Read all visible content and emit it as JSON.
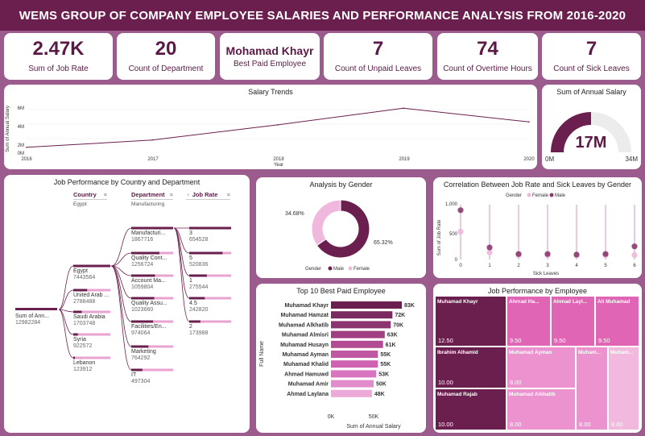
{
  "header": {
    "title": "WEMS GROUP OF COMPANY EMPLOYEE SALARIES AND PERFORMANCE ANALYSIS FROM 2016-2020"
  },
  "kpis": [
    {
      "value": "2.47K",
      "label": "Sum of Job Rate"
    },
    {
      "value": "20",
      "label": "Count of Department"
    },
    {
      "value": "Mohamad Khayr",
      "label": "Best Paid Employee"
    },
    {
      "value": "7",
      "label": "Count of Unpaid Leaves"
    },
    {
      "value": "74",
      "label": "Count of Overtime Hours"
    },
    {
      "value": "7",
      "label": "Count of Sick Leaves"
    }
  ],
  "salary_trends": {
    "title": "Salary Trends",
    "ylabel": "Sum of Annual Salary",
    "xlabel": "Year",
    "yticks": [
      "6M",
      "4M",
      "2M",
      "0M"
    ],
    "xticks": [
      "2016",
      "2017",
      "2018",
      "2019",
      "2020"
    ]
  },
  "gauge": {
    "title": "Sum of Annual Salary",
    "value": "17M",
    "min": "0M",
    "max": "34M",
    "fraction": 0.5
  },
  "decomp_tree": {
    "title": "Job Performance by Country and Department",
    "headers": [
      "Country",
      "Department",
      "Job Rate"
    ],
    "subheaders": [
      "Egypt",
      "Manufacturing",
      ""
    ],
    "root": {
      "name": "Sum of Ann...",
      "value": "12982284"
    },
    "countries": [
      {
        "name": "Egypt",
        "value": "7443564"
      },
      {
        "name": "United Arab ...",
        "value": "2788488"
      },
      {
        "name": "Saudi Arabia",
        "value": "1703748"
      },
      {
        "name": "Syria",
        "value": "922572"
      },
      {
        "name": "Lebanon",
        "value": "123912"
      }
    ],
    "departments": [
      {
        "name": "Manufacturi...",
        "value": "1867716"
      },
      {
        "name": "Quality Cont...",
        "value": "1256724"
      },
      {
        "name": "Account Ma...",
        "value": "1059804"
      },
      {
        "name": "Quality Assu...",
        "value": "1023660"
      },
      {
        "name": "Facilities/En...",
        "value": "974064"
      },
      {
        "name": "Marketing",
        "value": "764292"
      },
      {
        "name": "IT",
        "value": "497304"
      }
    ],
    "rates": [
      {
        "name": "3",
        "value": "654528"
      },
      {
        "name": "5",
        "value": "520836"
      },
      {
        "name": "1",
        "value": "275544"
      },
      {
        "name": "4.5",
        "value": "242820"
      },
      {
        "name": "2",
        "value": "173988"
      }
    ]
  },
  "gender": {
    "title": "Analysis by Gender",
    "male_pct": "65.32%",
    "female_pct": "34.68%",
    "legend_title": "Gender",
    "legend": [
      "Male",
      "Female"
    ],
    "colors": {
      "male": "#6b1f4e",
      "female": "#f0b8dc"
    }
  },
  "correlation": {
    "title": "Correlation Between Job Rate and Sick Leaves by Gender",
    "legend_title": "Gender",
    "legend": [
      "Female",
      "Male"
    ],
    "ylabel": "Sum of Job Rate",
    "xlabel": "Sick Leaves",
    "yticks": [
      "1,000",
      "500",
      "0"
    ],
    "xticks": [
      "0",
      "1",
      "2",
      "3",
      "4",
      "5",
      "6"
    ]
  },
  "top10": {
    "title": "Top 10 Best Paid Employee",
    "ylabel": "Full Name",
    "xlabel": "Sum of Annual Salary",
    "xticks": [
      "0K",
      "50K"
    ]
  },
  "treemap": {
    "title": "Job Performance by Employee",
    "cells": [
      {
        "name": "Muhamad Khayr",
        "value": "12.50",
        "color": "#6b1f4e"
      },
      {
        "name": "Ibrahim Alhamid",
        "value": "10.00",
        "color": "#6b1f4e"
      },
      {
        "name": "Muhamad Rajab",
        "value": "10.00",
        "color": "#6b1f4e"
      },
      {
        "name": "Ahmad Ha...",
        "value": "9.50",
        "color": "#e066b5"
      },
      {
        "name": "Ahmad Layl...",
        "value": "9.50",
        "color": "#e066b5"
      },
      {
        "name": "Ali Muhamad",
        "value": "9.50",
        "color": "#e066b5"
      },
      {
        "name": "Muhamad Ayman",
        "value": "8.00",
        "color": "#eb92cf"
      },
      {
        "name": "Muham...",
        "value": "8.00",
        "color": "#eb92cf"
      },
      {
        "name": "Muham...",
        "value": "8.00",
        "color": "#f2b8de"
      },
      {
        "name": "Muhamad Alkhatib",
        "value": "8.00",
        "color": "#eb92cf"
      }
    ]
  },
  "chart_data": [
    {
      "type": "line",
      "title": "Salary Trends",
      "x": [
        "2016",
        "2017",
        "2018",
        "2019",
        "2020"
      ],
      "series": [
        {
          "values": [
            0.8,
            1.8,
            3.9,
            6.2,
            4.3
          ]
        }
      ],
      "xlabel": "Year",
      "ylabel": "Sum of Annual Salary",
      "ylim": [
        0,
        7
      ],
      "unit": "M"
    },
    {
      "type": "pie",
      "title": "Analysis by Gender",
      "categories": [
        "Male",
        "Female"
      ],
      "values": [
        65.32,
        34.68
      ]
    },
    {
      "type": "scatter",
      "title": "Correlation Between Job Rate and Sick Leaves by Gender",
      "series": [
        {
          "name": "Female",
          "x": [
            0,
            1,
            2,
            3,
            4,
            5,
            6
          ],
          "y": [
            510,
            130,
            80,
            80,
            70,
            80,
            80
          ]
        },
        {
          "name": "Male",
          "x": [
            0,
            1,
            2,
            3,
            4,
            5,
            6
          ],
          "y": [
            900,
            220,
            100,
            100,
            90,
            100,
            240
          ]
        }
      ],
      "xlabel": "Sick Leaves",
      "ylabel": "Sum of Job Rate",
      "ylim": [
        0,
        1000
      ]
    },
    {
      "type": "bar",
      "title": "Top 10 Best Paid Employee",
      "categories": [
        "Muhamad Khayr",
        "Muhamad Hamzat",
        "Muhamad Alkhatib",
        "Muhamad Almisri",
        "Muhamad Husayn",
        "Muhamad Ayman",
        "Muhamad Khalid",
        "Ahmad Hamuwd",
        "Muhamad Amir",
        "Ahmad Laylana"
      ],
      "values": [
        83,
        72,
        70,
        63,
        61,
        55,
        55,
        53,
        50,
        48
      ],
      "labels": [
        "83K",
        "72K",
        "70K",
        "63K",
        "61K",
        "55K",
        "55K",
        "53K",
        "50K",
        "48K"
      ],
      "xlabel": "Sum of Annual Salary",
      "ylabel": "Full Name",
      "xlim": [
        0,
        80
      ]
    }
  ]
}
